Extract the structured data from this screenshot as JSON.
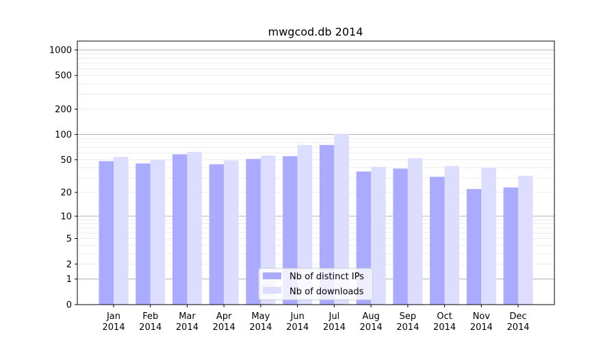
{
  "chart_data": {
    "type": "bar",
    "title": "mwgcod.db 2014",
    "xlabel": "",
    "ylabel": "",
    "yscale": "symlog",
    "ylim": [
      0,
      1300
    ],
    "yticks": [
      0,
      1,
      2,
      5,
      10,
      20,
      50,
      100,
      200,
      500,
      1000
    ],
    "grid": true,
    "legend_position": "lower-center",
    "categories": [
      "Jan\n2014",
      "Feb\n2014",
      "Mar\n2014",
      "Apr\n2014",
      "May\n2014",
      "Jun\n2014",
      "Jul\n2014",
      "Aug\n2014",
      "Sep\n2014",
      "Oct\n2014",
      "Nov\n2014",
      "Dec\n2014"
    ],
    "series": [
      {
        "name": "Nb of distinct IPs",
        "color": "#aaaaff",
        "values": [
          48,
          45,
          58,
          44,
          51,
          55,
          75,
          36,
          39,
          31,
          22,
          23
        ]
      },
      {
        "name": "Nb of downloads",
        "color": "#ddddff",
        "values": [
          54,
          50,
          62,
          49,
          56,
          75,
          102,
          41,
          52,
          42,
          40,
          32
        ]
      }
    ]
  }
}
